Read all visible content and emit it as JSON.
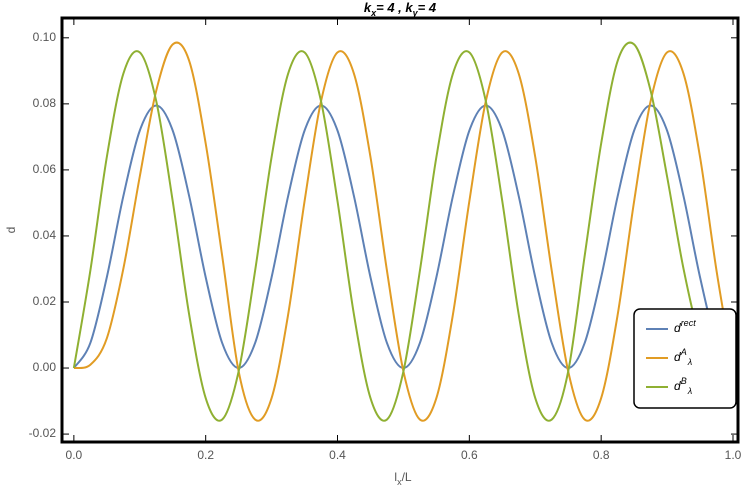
{
  "chart_data": {
    "type": "line",
    "title": [
      "k",
      "x",
      "= 4 , ",
      "k",
      "y",
      "= 4"
    ],
    "x_label": [
      "l",
      "x",
      "/L"
    ],
    "y_label": "d",
    "x": [
      0,
      0.025,
      0.05,
      0.075,
      0.1,
      0.125,
      0.15,
      0.175,
      0.2,
      0.225,
      0.25,
      0.275,
      0.3,
      0.325,
      0.35,
      0.375,
      0.4,
      0.425,
      0.45,
      0.475,
      0.5,
      0.525,
      0.55,
      0.575,
      0.6,
      0.625,
      0.65,
      0.675,
      0.7,
      0.725,
      0.75,
      0.775,
      0.8,
      0.825,
      0.85,
      0.875,
      0.9,
      0.925,
      0.95,
      0.975,
      1
    ],
    "series": [
      {
        "name": [
          "d",
          "rect"
        ],
        "color": "#5e81b5",
        "values": [
          0,
          0.0076,
          0.0275,
          0.052,
          0.0719,
          0.0795,
          0.0719,
          0.052,
          0.0275,
          0.0076,
          0,
          0.0076,
          0.0275,
          0.052,
          0.0719,
          0.0795,
          0.0719,
          0.052,
          0.0275,
          0.0076,
          0,
          0.0076,
          0.0275,
          0.052,
          0.0719,
          0.0795,
          0.0719,
          0.052,
          0.0275,
          0.0076,
          0,
          0.0076,
          0.0275,
          0.052,
          0.0719,
          0.0795,
          0.0719,
          0.052,
          0.0275,
          0.0076,
          0
        ]
      },
      {
        "name": [
          "d",
          "A",
          "λ"
        ],
        "color": "#e19c24",
        "values": [
          0,
          0.001,
          0.009,
          0.03,
          0.058,
          0.084,
          0.098,
          0.093,
          0.068,
          0.034,
          -0.001,
          -0.0156,
          -0.0091,
          0.0161,
          0.0505,
          0.0808,
          0.0956,
          0.0891,
          0.0639,
          0.0295,
          -0.001,
          -0.0156,
          -0.0091,
          0.0161,
          0.0505,
          0.0808,
          0.0956,
          0.0891,
          0.0639,
          0.0295,
          -0.001,
          -0.0156,
          -0.0091,
          0.0161,
          0.0505,
          0.0808,
          0.0956,
          0.0891,
          0.0639,
          0.0295,
          0
        ]
      },
      {
        "name": [
          "d",
          "B",
          "λ"
        ],
        "color": "#8fb032",
        "values": [
          0,
          0.0295,
          0.0639,
          0.0891,
          0.0956,
          0.0808,
          0.0505,
          0.0161,
          -0.0091,
          -0.0156,
          -0.001,
          0.0295,
          0.0639,
          0.0891,
          0.0956,
          0.0808,
          0.0505,
          0.0161,
          -0.0091,
          -0.0156,
          -0.001,
          0.0295,
          0.0639,
          0.0891,
          0.0956,
          0.0808,
          0.0505,
          0.0161,
          -0.0091,
          -0.0156,
          -0.001,
          0.034,
          0.068,
          0.093,
          0.098,
          0.084,
          0.058,
          0.03,
          0.009,
          0.001,
          0
        ]
      }
    ],
    "xlim": [
      -0.018,
      1.0076
    ],
    "ylim": [
      -0.0224,
      0.106
    ],
    "xticks": [
      {
        "value": 0,
        "label": "0.0"
      },
      {
        "value": 0.2,
        "label": "0.2"
      },
      {
        "value": 0.4,
        "label": "0.4"
      },
      {
        "value": 0.6,
        "label": "0.6"
      },
      {
        "value": 0.8,
        "label": "0.8"
      },
      {
        "value": 1,
        "label": "1.0"
      }
    ],
    "yticks": [
      {
        "value": -0.02,
        "label": "-0.02"
      },
      {
        "value": 0,
        "label": "0.00"
      },
      {
        "value": 0.02,
        "label": "0.02"
      },
      {
        "value": 0.04,
        "label": "0.04"
      },
      {
        "value": 0.06,
        "label": "0.06"
      },
      {
        "value": 0.08,
        "label": "0.08"
      },
      {
        "value": 0.1,
        "label": "0.10"
      }
    ],
    "legend": "bottom-right"
  }
}
